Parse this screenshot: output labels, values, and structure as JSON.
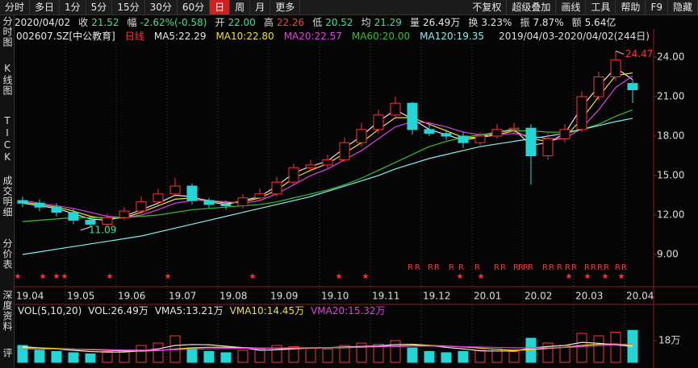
{
  "toolbar": {
    "left": [
      "分时",
      "多日",
      "1分",
      "5分",
      "15分",
      "30分",
      "60分",
      "日",
      "周",
      "月",
      "更多"
    ],
    "active": "日",
    "right": [
      "不复权",
      "超级叠加",
      "画线",
      "工具",
      "帮助",
      "F9",
      "隐藏"
    ]
  },
  "sidebar": [
    "分时图",
    "K线图",
    "TICK",
    "成交明细",
    "分价表",
    "深度资料",
    "评"
  ],
  "info": {
    "date": "2020/04/02",
    "items": [
      {
        "label": "收",
        "value": "21.52",
        "color": "#2ee6a0"
      },
      {
        "label": "幅",
        "value": "-2.62%(-0.58)",
        "color": "#2ee6a0"
      },
      {
        "label": "开",
        "value": "22.00",
        "color": "#2ee6a0"
      },
      {
        "label": "高",
        "value": "22.26",
        "color": "#ff3c3c"
      },
      {
        "label": "低",
        "value": "20.52",
        "color": "#2ee6a0"
      },
      {
        "label": "均",
        "value": "21.29",
        "color": "#2ee6a0"
      },
      {
        "label": "量",
        "value": "26.49万",
        "color": "#e6e6e6"
      },
      {
        "label": "换",
        "value": "3.23%",
        "color": "#e6e6e6"
      },
      {
        "label": "振",
        "value": "7.87%",
        "color": "#e6e6e6"
      },
      {
        "label": "额",
        "value": "5.64亿",
        "color": "#e6e6e6"
      }
    ]
  },
  "chart_data": [
    {
      "type": "candlestick",
      "code": "002607.SZ",
      "name": "[中公教育]",
      "period": "日线",
      "range_text": "2019/04/03-2020/04/02(244日)",
      "rights_marker": "R",
      "categories": [
        "19.04",
        null,
        null,
        "19.05",
        null,
        null,
        "19.06",
        null,
        null,
        "19.07",
        null,
        null,
        "19.08",
        null,
        null,
        "19.09",
        null,
        null,
        "19.10",
        null,
        null,
        "19.11",
        null,
        null,
        "19.12",
        null,
        null,
        "20.01",
        null,
        null,
        "20.02",
        null,
        null,
        "20.03",
        null,
        null,
        "20.04"
      ],
      "open": [
        13.1,
        12.9,
        12.6,
        12.2,
        11.6,
        11.3,
        11.8,
        12.3,
        13.0,
        13.6,
        14.2,
        13.1,
        12.8,
        12.7,
        13.3,
        13.6,
        14.5,
        15.6,
        15.8,
        16.2,
        17.5,
        18.5,
        19.6,
        20.5,
        18.5,
        18.2,
        18.0,
        17.5,
        18.0,
        18.5,
        18.6,
        16.5,
        17.8,
        18.5,
        21.0,
        22.5,
        22.0
      ],
      "high": [
        13.4,
        13.2,
        12.9,
        12.5,
        11.9,
        12.1,
        12.6,
        13.4,
        14.0,
        14.8,
        14.4,
        13.3,
        13.1,
        13.6,
        14.0,
        14.9,
        15.9,
        16.2,
        16.6,
        17.9,
        19.0,
        20.0,
        21.0,
        20.6,
        18.9,
        18.5,
        18.3,
        18.3,
        18.9,
        19.0,
        18.9,
        18.2,
        18.9,
        21.4,
        22.9,
        24.47,
        22.26
      ],
      "low": [
        12.6,
        12.3,
        11.9,
        11.3,
        11.09,
        11.1,
        11.6,
        12.1,
        12.8,
        13.4,
        12.8,
        12.5,
        12.4,
        12.5,
        13.1,
        13.4,
        14.3,
        15.3,
        15.5,
        16.0,
        17.2,
        18.2,
        19.3,
        18.1,
        18.0,
        17.7,
        17.1,
        17.3,
        17.8,
        18.2,
        14.3,
        16.2,
        17.5,
        18.3,
        20.7,
        22.2,
        20.52
      ],
      "close": [
        12.9,
        12.6,
        12.2,
        11.6,
        11.3,
        11.8,
        12.3,
        13.0,
        13.6,
        14.2,
        13.1,
        12.8,
        12.7,
        13.3,
        13.6,
        14.5,
        15.6,
        15.8,
        16.2,
        17.5,
        18.5,
        19.6,
        20.5,
        18.5,
        18.2,
        18.0,
        17.5,
        18.0,
        18.5,
        18.6,
        16.5,
        17.8,
        18.5,
        21.0,
        22.5,
        23.8,
        21.52
      ],
      "up_color": "#ff3232",
      "down_color": "#23d6d6",
      "series": [
        {
          "name": "MA5:22.29",
          "color": "#e6e6e6",
          "values": [
            12.9,
            12.7,
            12.5,
            12.1,
            11.7,
            11.6,
            11.9,
            12.4,
            12.9,
            13.5,
            13.4,
            13.0,
            12.8,
            13.1,
            13.4,
            14.2,
            15.2,
            15.7,
            16.1,
            17.1,
            18.0,
            19.1,
            20.0,
            19.3,
            18.5,
            18.1,
            17.7,
            17.9,
            18.3,
            18.5,
            17.3,
            17.5,
            18.2,
            20.2,
            21.8,
            23.2,
            22.29
          ]
        },
        {
          "name": "MA10:22.80",
          "color": "#f0e020",
          "values": [
            13.0,
            12.8,
            12.6,
            12.3,
            11.9,
            11.7,
            11.8,
            12.2,
            12.7,
            13.2,
            13.3,
            13.1,
            12.9,
            13.0,
            13.3,
            13.9,
            14.8,
            15.4,
            15.9,
            16.7,
            17.5,
            18.5,
            19.4,
            19.4,
            18.9,
            18.4,
            17.9,
            17.9,
            18.1,
            18.4,
            17.8,
            17.6,
            17.9,
            19.3,
            21.0,
            22.6,
            22.8
          ]
        },
        {
          "name": "MA20:22.57",
          "color": "#e040e0",
          "values": [
            13.1,
            12.9,
            12.7,
            12.5,
            12.2,
            11.9,
            11.8,
            12.0,
            12.4,
            12.9,
            13.1,
            13.1,
            13.0,
            12.9,
            13.1,
            13.6,
            14.3,
            15.0,
            15.5,
            16.2,
            16.9,
            17.8,
            18.7,
            19.1,
            19.0,
            18.7,
            18.3,
            18.1,
            18.1,
            18.2,
            18.0,
            17.8,
            17.8,
            18.6,
            20.0,
            21.7,
            22.57
          ]
        },
        {
          "name": "MA60:20.00",
          "color": "#30c030",
          "values": [
            11.5,
            11.6,
            11.7,
            11.8,
            11.8,
            11.8,
            11.8,
            11.9,
            12.0,
            12.2,
            12.4,
            12.5,
            12.6,
            12.7,
            12.8,
            13.0,
            13.3,
            13.6,
            13.9,
            14.3,
            14.8,
            15.4,
            16.0,
            16.6,
            17.2,
            17.6,
            17.9,
            18.1,
            18.3,
            18.4,
            18.4,
            18.3,
            18.3,
            18.5,
            18.9,
            19.5,
            20.0
          ]
        },
        {
          "name": "MA120:19.35",
          "color": "#7ff0f0",
          "values": [
            9.0,
            9.2,
            9.4,
            9.6,
            9.8,
            10.0,
            10.2,
            10.4,
            10.7,
            11.0,
            11.3,
            11.6,
            11.9,
            12.2,
            12.5,
            12.8,
            13.1,
            13.4,
            13.8,
            14.2,
            14.6,
            15.0,
            15.5,
            15.9,
            16.3,
            16.6,
            16.9,
            17.2,
            17.4,
            17.6,
            17.8,
            18.0,
            18.2,
            18.5,
            18.8,
            19.1,
            19.35
          ]
        }
      ],
      "ylim": [
        7.53,
        25.04
      ],
      "yticks": [
        {
          "value": 24,
          "label": "24.00"
        },
        {
          "value": 21,
          "label": "21.00"
        },
        {
          "value": 18,
          "label": "18.00"
        },
        {
          "value": 15,
          "label": "15.00"
        },
        {
          "value": 12,
          "label": "12.00"
        },
        {
          "value": 9,
          "label": "9.00"
        }
      ],
      "grid": false,
      "vgrid": true
    },
    {
      "type": "bar",
      "title": "VOL(5,10,20)",
      "vol_label": "VOL:26.49万",
      "values": [
        14,
        10,
        9,
        8,
        7,
        9,
        10,
        14,
        16,
        22,
        12,
        9,
        8,
        10,
        11,
        14,
        13,
        12,
        11,
        14,
        16,
        15,
        18,
        12,
        9,
        8,
        9,
        10,
        11,
        9,
        20,
        16,
        14,
        24,
        22,
        25,
        26.49
      ],
      "series": [
        {
          "name": "VMA5:13.21万",
          "color": "#e6e6e6",
          "values": [
            13,
            12,
            11,
            10,
            9,
            8.5,
            8.6,
            9.6,
            11.2,
            14,
            14.8,
            14.6,
            13.4,
            12.2,
            10,
            10.4,
            11.2,
            12,
            12.2,
            12.8,
            13.2,
            13.6,
            14.8,
            15,
            14,
            12.4,
            11.2,
            9.6,
            9.4,
            9.4,
            11.8,
            13.2,
            14,
            16.6,
            15.8,
            14.5,
            13.21
          ]
        },
        {
          "name": "VMA10:14.45万",
          "color": "#f0e020",
          "values": [
            12,
            12,
            11.5,
            11,
            10.5,
            10,
            9.5,
            9.3,
            9.8,
            11,
            12,
            12.5,
            12.5,
            12.3,
            11.8,
            11.5,
            11.5,
            11.8,
            12,
            12.2,
            12.6,
            13,
            13.5,
            14,
            14,
            13.5,
            12.8,
            11.8,
            10.8,
            10,
            10.5,
            11.5,
            12.5,
            14,
            15,
            15.2,
            14.45
          ]
        },
        {
          "name": "VMA20:15.32万",
          "color": "#e040e0",
          "values": [
            11,
            11,
            11,
            11,
            10.8,
            10.5,
            10.3,
            10.2,
            10.2,
            10.5,
            11,
            11.3,
            11.5,
            11.7,
            11.8,
            11.9,
            12,
            12.1,
            12.2,
            12.4,
            12.6,
            12.9,
            13.2,
            13.5,
            13.5,
            13.3,
            13,
            12.7,
            12.4,
            12.1,
            12,
            12,
            12.3,
            13,
            13.8,
            14.6,
            15.32
          ]
        }
      ],
      "ylim": [
        0,
        36.7
      ],
      "yticks": [
        {
          "value": 18,
          "label": "18万"
        }
      ]
    }
  ]
}
